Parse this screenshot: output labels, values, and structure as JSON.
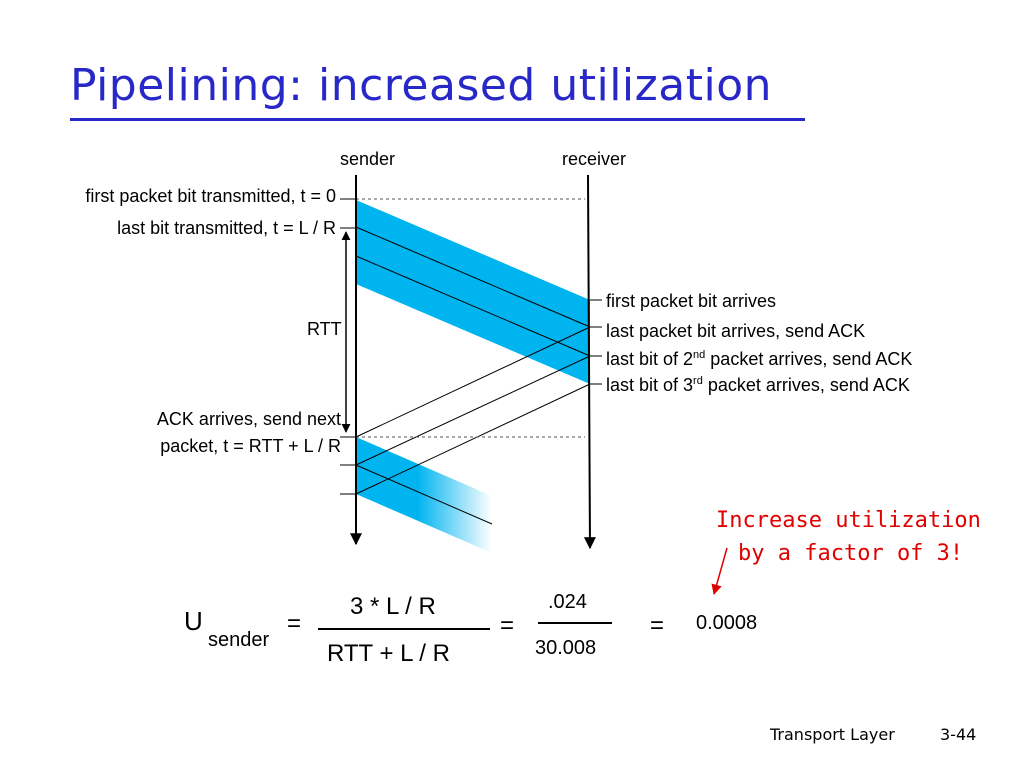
{
  "title": "Pipelining: increased utilization",
  "timeline": {
    "sender": "sender",
    "receiver": "receiver",
    "rtt": "RTT",
    "left_labels": {
      "first_bit": "first packet bit transmitted, t = 0",
      "last_bit": "last bit transmitted, t = L / R",
      "ack_line1": "ACK arrives, send next",
      "ack_line2": "packet, t = RTT + L / R"
    },
    "right_labels": {
      "first_arrives": "first packet bit arrives",
      "last_arrives": "last packet bit arrives, send ACK",
      "second_pre": "last bit of 2",
      "second_sup": "nd",
      "second_post": " packet arrives, send ACK",
      "third_pre": "last bit of 3",
      "third_sup": "rd",
      "third_post": " packet arrives, send ACK"
    }
  },
  "callout": {
    "line1": "Increase utilization",
    "line2": "by a factor of 3!"
  },
  "equation": {
    "u": "U",
    "sub": "sender",
    "eq": "=",
    "num": "3 * L / R",
    "den": "RTT + L / R",
    "num2": ".024",
    "den2": "30.008",
    "result": "0.0008"
  },
  "footer": {
    "section": "Transport Layer",
    "page": "3-44"
  },
  "colors": {
    "title": "#2828c8",
    "packet_fill": "#00b4f0",
    "callout": "#e00000"
  }
}
